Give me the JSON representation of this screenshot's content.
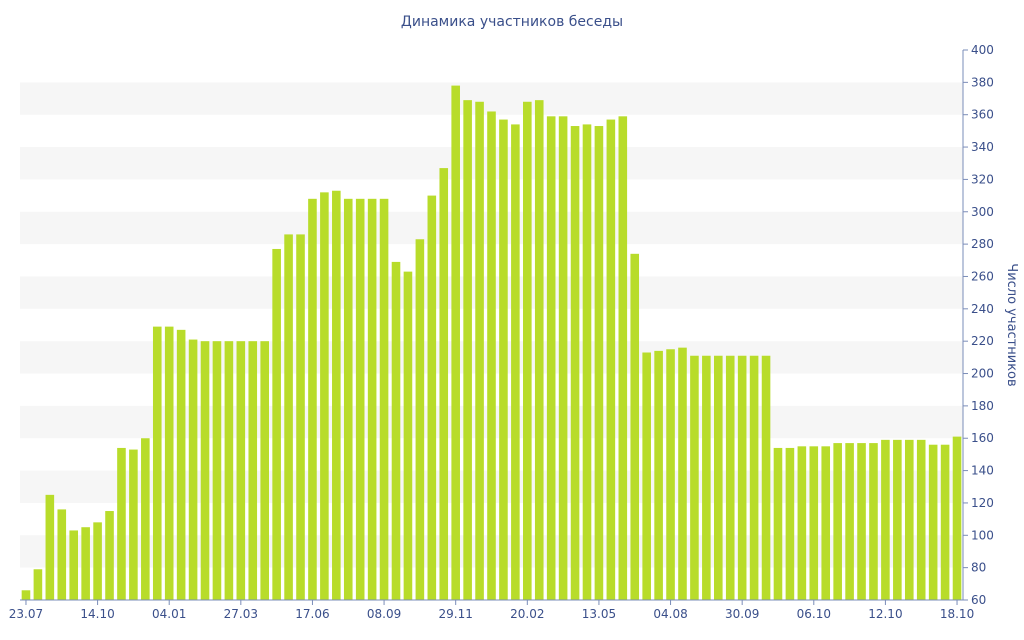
{
  "chart_data": {
    "type": "bar",
    "title": "Динамика участников беседы",
    "xlabel": "",
    "ylabel": "Число участников",
    "ylim": [
      60,
      400
    ],
    "yticks": [
      60,
      80,
      100,
      120,
      140,
      160,
      180,
      200,
      220,
      240,
      260,
      280,
      300,
      320,
      340,
      360,
      380,
      400
    ],
    "x_tick_labels": [
      {
        "index": 0,
        "label": "23.07"
      },
      {
        "index": 6,
        "label": "14.10"
      },
      {
        "index": 12,
        "label": "04.01"
      },
      {
        "index": 18,
        "label": "27.03"
      },
      {
        "index": 24,
        "label": "17.06"
      },
      {
        "index": 30,
        "label": "08.09"
      },
      {
        "index": 36,
        "label": "29.11"
      },
      {
        "index": 42,
        "label": "20.02"
      },
      {
        "index": 48,
        "label": "13.05"
      },
      {
        "index": 54,
        "label": "04.08"
      },
      {
        "index": 60,
        "label": "30.09"
      },
      {
        "index": 66,
        "label": "06.10"
      },
      {
        "index": 72,
        "label": "12.10"
      },
      {
        "index": 78,
        "label": "18.10"
      }
    ],
    "values": [
      66,
      79,
      125,
      116,
      103,
      105,
      108,
      115,
      154,
      153,
      160,
      229,
      229,
      227,
      221,
      220,
      220,
      220,
      220,
      220,
      220,
      277,
      286,
      286,
      308,
      312,
      313,
      308,
      308,
      308,
      308,
      269,
      263,
      283,
      310,
      327,
      378,
      369,
      368,
      362,
      357,
      354,
      368,
      369,
      359,
      359,
      353,
      354,
      353,
      357,
      359,
      274,
      213,
      214,
      215,
      216,
      211,
      211,
      211,
      211,
      211,
      211,
      211,
      154,
      154,
      155,
      155,
      155,
      157,
      157,
      157,
      157,
      159,
      159,
      159,
      159,
      156,
      156,
      161
    ],
    "bar_color": "#b8dc2a",
    "grid": "horizontal bands",
    "band_color": "#f6f6f6",
    "text_color": "#3a4f8a",
    "axis_color": "#7a8cb8"
  }
}
